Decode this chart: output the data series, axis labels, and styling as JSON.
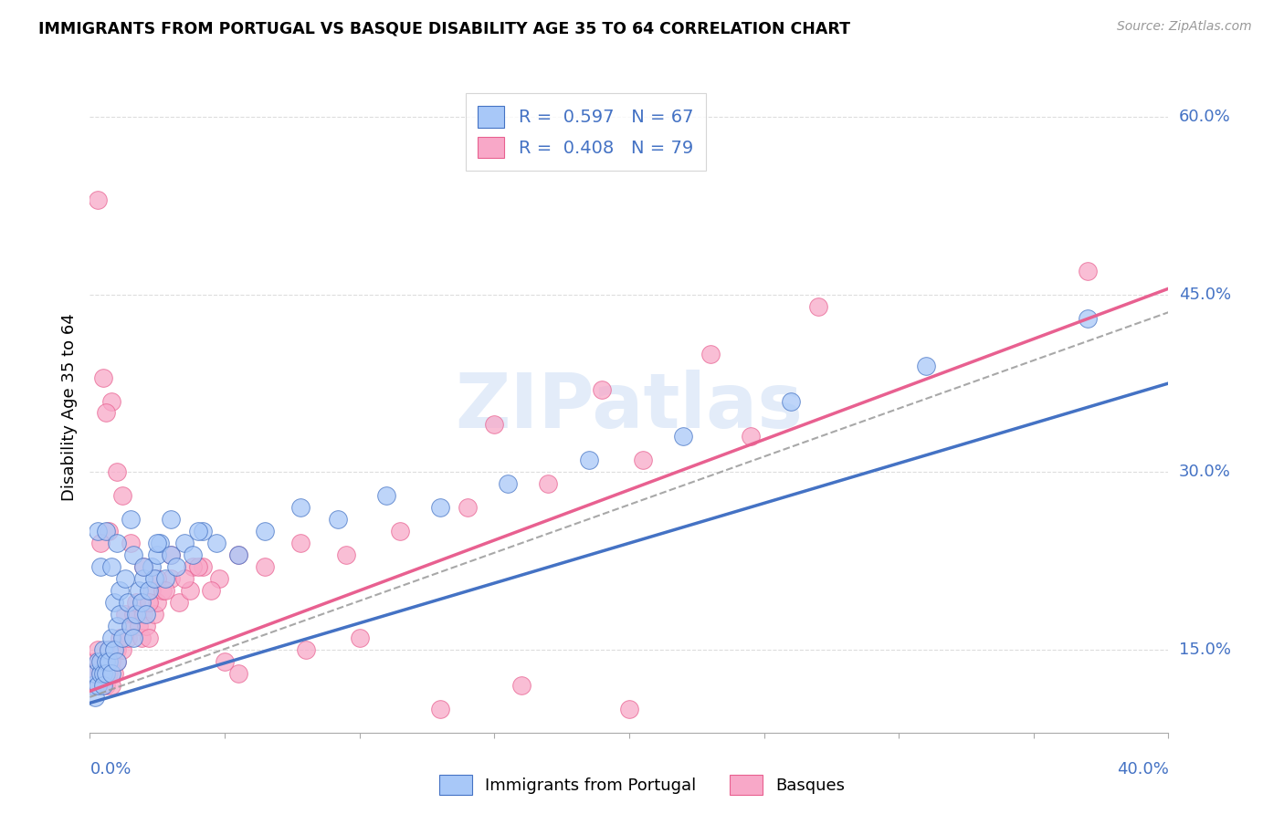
{
  "title": "IMMIGRANTS FROM PORTUGAL VS BASQUE DISABILITY AGE 35 TO 64 CORRELATION CHART",
  "source": "Source: ZipAtlas.com",
  "ylabel": "Disability Age 35 to 64",
  "right_yticks": [
    0.15,
    0.3,
    0.45,
    0.6
  ],
  "right_yticklabels": [
    "15.0%",
    "30.0%",
    "45.0%",
    "60.0%"
  ],
  "xlim": [
    0.0,
    0.4
  ],
  "ylim": [
    0.08,
    0.63
  ],
  "legend1_r": "0.597",
  "legend1_n": "67",
  "legend2_r": "0.408",
  "legend2_n": "79",
  "color_blue": "#a8c8f8",
  "color_pink": "#f8a8c8",
  "color_blue_line": "#4472c4",
  "color_pink_line": "#e86090",
  "color_text_blue": "#4472c4",
  "watermark": "ZIPatlas",
  "blue_line_x0": 0.0,
  "blue_line_y0": 0.105,
  "blue_line_x1": 0.4,
  "blue_line_y1": 0.375,
  "pink_line_x0": 0.0,
  "pink_line_y0": 0.115,
  "pink_line_x1": 0.4,
  "pink_line_y1": 0.455,
  "dash_line_x0": 0.0,
  "dash_line_y0": 0.11,
  "dash_line_x1": 0.4,
  "dash_line_y1": 0.435,
  "blue_points_x": [
    0.001,
    0.002,
    0.002,
    0.003,
    0.003,
    0.004,
    0.004,
    0.005,
    0.005,
    0.005,
    0.006,
    0.006,
    0.007,
    0.007,
    0.008,
    0.008,
    0.009,
    0.009,
    0.01,
    0.01,
    0.011,
    0.011,
    0.012,
    0.013,
    0.014,
    0.015,
    0.016,
    0.016,
    0.017,
    0.018,
    0.019,
    0.02,
    0.021,
    0.022,
    0.023,
    0.024,
    0.025,
    0.026,
    0.028,
    0.03,
    0.032,
    0.035,
    0.038,
    0.042,
    0.047,
    0.055,
    0.065,
    0.078,
    0.092,
    0.11,
    0.13,
    0.155,
    0.185,
    0.22,
    0.26,
    0.31,
    0.37,
    0.003,
    0.004,
    0.006,
    0.008,
    0.01,
    0.015,
    0.02,
    0.025,
    0.03,
    0.04
  ],
  "blue_points_y": [
    0.12,
    0.13,
    0.11,
    0.14,
    0.12,
    0.13,
    0.14,
    0.13,
    0.15,
    0.12,
    0.14,
    0.13,
    0.15,
    0.14,
    0.13,
    0.16,
    0.15,
    0.19,
    0.17,
    0.14,
    0.18,
    0.2,
    0.16,
    0.21,
    0.19,
    0.17,
    0.23,
    0.16,
    0.18,
    0.2,
    0.19,
    0.21,
    0.18,
    0.2,
    0.22,
    0.21,
    0.23,
    0.24,
    0.21,
    0.23,
    0.22,
    0.24,
    0.23,
    0.25,
    0.24,
    0.23,
    0.25,
    0.27,
    0.26,
    0.28,
    0.27,
    0.29,
    0.31,
    0.33,
    0.36,
    0.39,
    0.43,
    0.25,
    0.22,
    0.25,
    0.22,
    0.24,
    0.26,
    0.22,
    0.24,
    0.26,
    0.25
  ],
  "pink_points_x": [
    0.001,
    0.001,
    0.002,
    0.002,
    0.003,
    0.003,
    0.004,
    0.004,
    0.005,
    0.005,
    0.006,
    0.006,
    0.007,
    0.007,
    0.008,
    0.008,
    0.009,
    0.01,
    0.01,
    0.011,
    0.012,
    0.013,
    0.014,
    0.015,
    0.016,
    0.017,
    0.018,
    0.019,
    0.02,
    0.021,
    0.022,
    0.023,
    0.024,
    0.025,
    0.027,
    0.03,
    0.033,
    0.037,
    0.042,
    0.048,
    0.055,
    0.065,
    0.078,
    0.095,
    0.115,
    0.14,
    0.17,
    0.205,
    0.245,
    0.15,
    0.19,
    0.23,
    0.27,
    0.038,
    0.055,
    0.012,
    0.008,
    0.003,
    0.005,
    0.007,
    0.015,
    0.02,
    0.025,
    0.03,
    0.035,
    0.04,
    0.045,
    0.01,
    0.006,
    0.004,
    0.022,
    0.028,
    0.05,
    0.08,
    0.1,
    0.13,
    0.16,
    0.2,
    0.37
  ],
  "pink_points_y": [
    0.13,
    0.12,
    0.14,
    0.13,
    0.12,
    0.15,
    0.14,
    0.13,
    0.14,
    0.13,
    0.14,
    0.12,
    0.13,
    0.15,
    0.14,
    0.12,
    0.13,
    0.15,
    0.14,
    0.16,
    0.15,
    0.18,
    0.16,
    0.17,
    0.18,
    0.19,
    0.17,
    0.16,
    0.18,
    0.17,
    0.16,
    0.2,
    0.18,
    0.19,
    0.2,
    0.21,
    0.19,
    0.2,
    0.22,
    0.21,
    0.23,
    0.22,
    0.24,
    0.23,
    0.25,
    0.27,
    0.29,
    0.31,
    0.33,
    0.34,
    0.37,
    0.4,
    0.44,
    0.22,
    0.13,
    0.28,
    0.36,
    0.53,
    0.38,
    0.25,
    0.24,
    0.22,
    0.21,
    0.23,
    0.21,
    0.22,
    0.2,
    0.3,
    0.35,
    0.24,
    0.19,
    0.2,
    0.14,
    0.15,
    0.16,
    0.1,
    0.12,
    0.1,
    0.47
  ]
}
